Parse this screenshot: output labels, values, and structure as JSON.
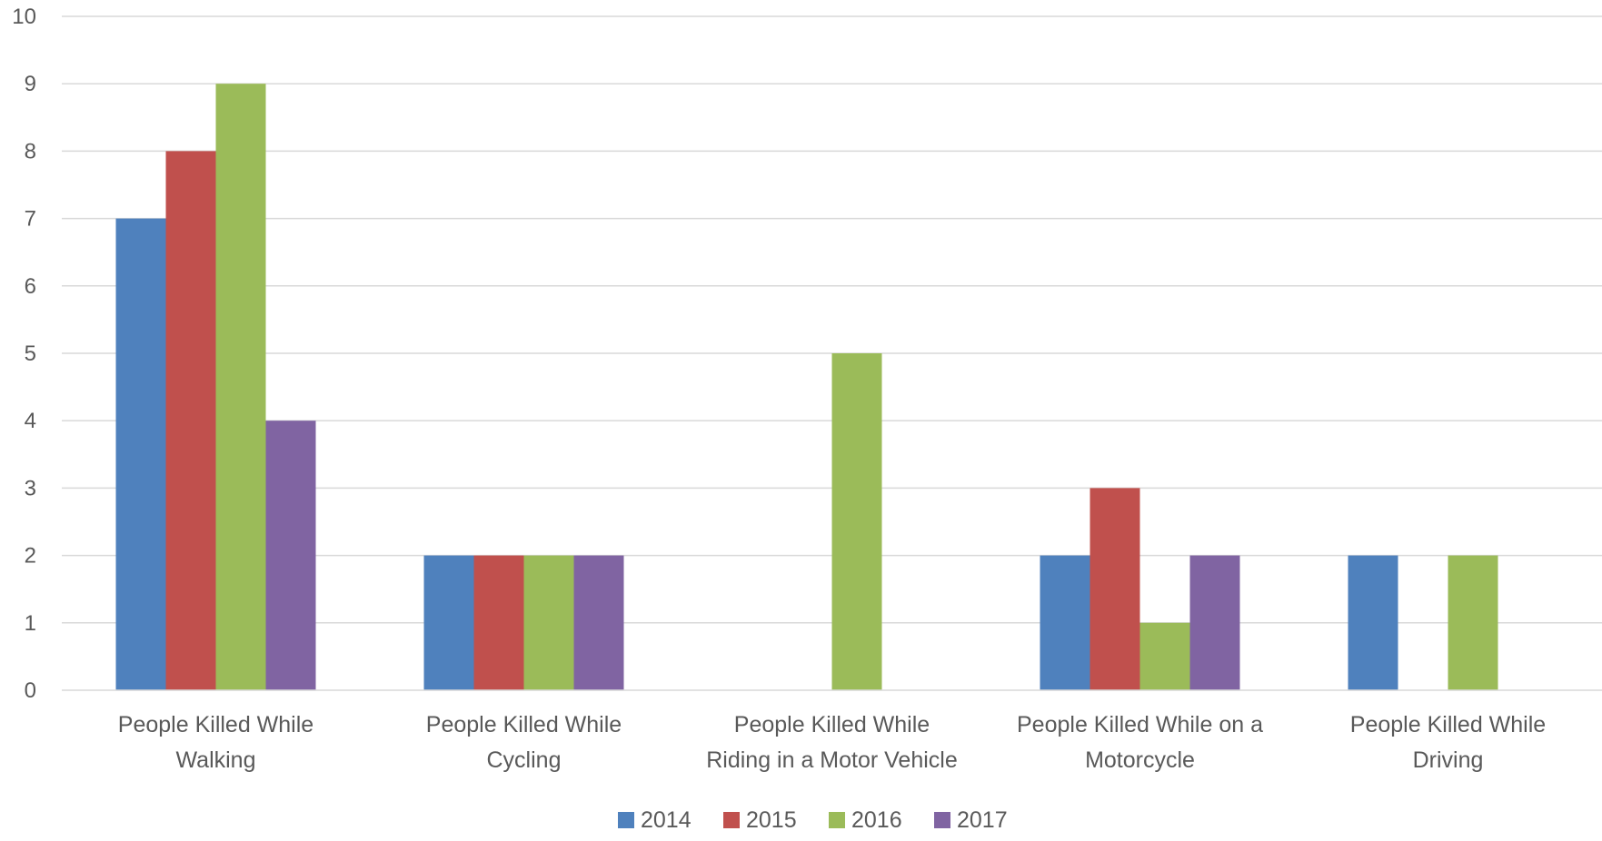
{
  "chart_data": {
    "type": "bar",
    "categories": [
      [
        "People Killed While",
        "Walking"
      ],
      [
        "People Killed While",
        "Cycling"
      ],
      [
        "People Killed While",
        "Riding in a Motor Vehicle"
      ],
      [
        "People Killed While on a",
        "Motorcycle"
      ],
      [
        "People Killed While",
        "Driving"
      ]
    ],
    "series": [
      {
        "name": "2014",
        "color": "#4F81BD",
        "values": [
          7,
          2,
          0,
          2,
          2
        ]
      },
      {
        "name": "2015",
        "color": "#C0504D",
        "values": [
          8,
          2,
          0,
          3,
          0
        ]
      },
      {
        "name": "2016",
        "color": "#9BBB59",
        "values": [
          9,
          2,
          5,
          1,
          2
        ]
      },
      {
        "name": "2017",
        "color": "#8064A2",
        "values": [
          4,
          2,
          0,
          2,
          0
        ]
      }
    ],
    "ylim": [
      0,
      10
    ],
    "yticks": [
      0,
      1,
      2,
      3,
      4,
      5,
      6,
      7,
      8,
      9,
      10
    ],
    "grid": true,
    "legend": "bottom-center",
    "title": "",
    "xlabel": "",
    "ylabel": ""
  }
}
